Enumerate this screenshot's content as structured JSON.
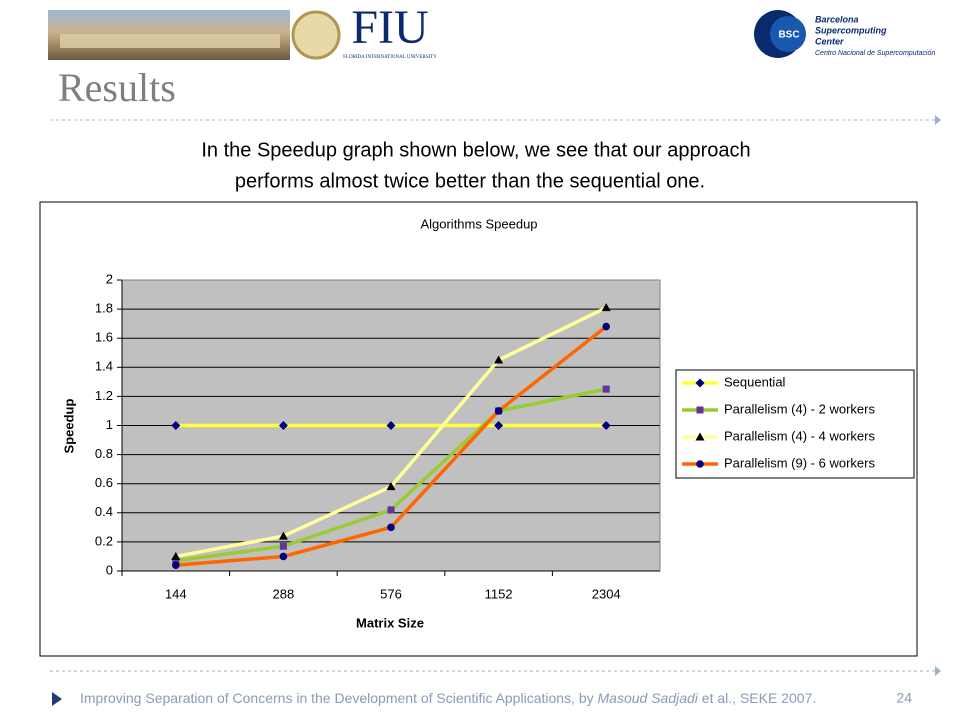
{
  "slide": {
    "title": "Results",
    "intro": [
      "In the Speedup graph shown below, we see that our approach",
      "performs almost twice better than the sequential one."
    ],
    "logo_fiu": "FIU",
    "logo_fiu_sub": "FLORIDA INTERNATIONAL UNIVERSITY",
    "logo_bsc": "BSC",
    "logo_bsc_lines": [
      "Barcelona",
      "Supercomputing",
      "Center"
    ],
    "logo_bsc_sub": "Centro Nacional de Supercomputación",
    "footer": [
      "Improving Separation of Concerns in the Development of Scientific Applications, by ",
      "Masoud Sadjadi",
      " et al., SEKE 2007."
    ],
    "page": "24"
  },
  "chart_data": {
    "type": "line",
    "title": "Algorithms Speedup",
    "x_label": "Matrix Size",
    "y_label": "Speedup",
    "categories": [
      "144",
      "288",
      "576",
      "1152",
      "2304"
    ],
    "series": [
      {
        "name": "Sequential",
        "color": "#ffff33",
        "marker": "diamond",
        "marker_color": "#000080",
        "values": [
          1,
          1,
          1,
          1,
          1
        ]
      },
      {
        "name": "Parallelism (4) - 2 workers",
        "color": "#99cc33",
        "marker": "square",
        "marker_color": "#663399",
        "values": [
          0.07,
          0.17,
          0.42,
          1.1,
          1.25
        ]
      },
      {
        "name": "Parallelism (4) - 4 workers",
        "color": "#ffff99",
        "marker": "triangle",
        "marker_color": "#000000",
        "values": [
          0.1,
          0.24,
          0.58,
          1.45,
          1.81
        ]
      },
      {
        "name": "Parallelism (9) - 6 workers",
        "color": "#ff6600",
        "marker": "circle",
        "marker_color": "#000080",
        "values": [
          0.04,
          0.1,
          0.3,
          1.1,
          1.68
        ]
      }
    ],
    "ylim": [
      0,
      2
    ],
    "yticks": [
      0,
      0.2,
      0.4,
      0.6,
      0.8,
      1,
      1.2,
      1.4,
      1.6,
      1.8,
      2
    ],
    "grid": true,
    "legend": "right",
    "plot_background": "#c0c0c0"
  }
}
